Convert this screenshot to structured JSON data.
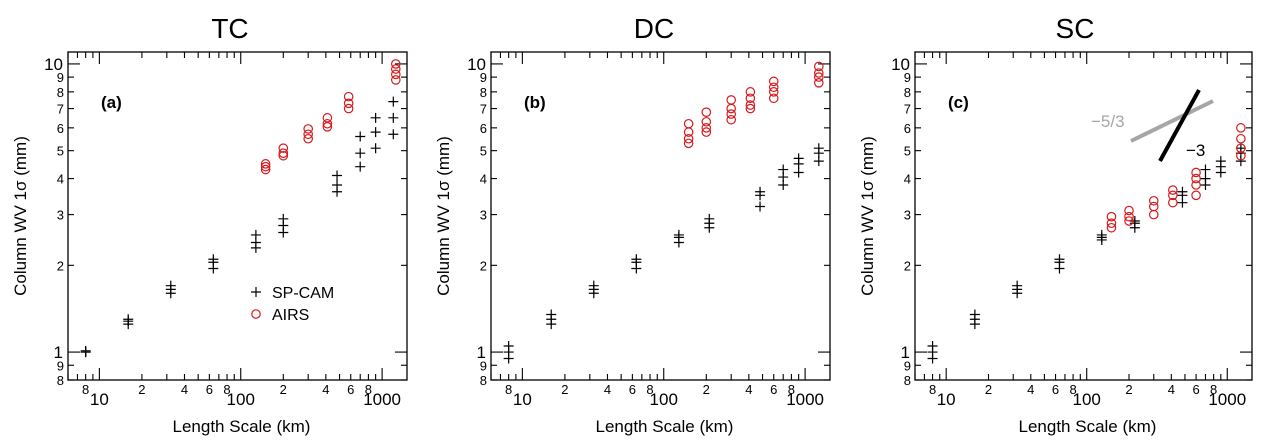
{
  "chart_data": [
    {
      "type": "scatter",
      "title": "TC",
      "panel_label": "(a)",
      "xlabel": "Length Scale (km)",
      "ylabel": "Column  WV  1σ   (mm)",
      "xscale": "log",
      "yscale": "log",
      "xlim": [
        6,
        1500
      ],
      "ylim": [
        0.8,
        11
      ],
      "x_ticklabels": [
        "10",
        "100",
        "1000"
      ],
      "y_ticklabels": [
        "1",
        "10"
      ],
      "legend": {
        "position": "lower-right",
        "entries": [
          "SP-CAM",
          "AIRS"
        ]
      },
      "series": [
        {
          "name": "SP-CAM",
          "marker": "plus",
          "color": "#000000",
          "points": [
            [
              8,
              1.0
            ],
            [
              8,
              1.01
            ],
            [
              8,
              1.0
            ],
            [
              16,
              1.25
            ],
            [
              16,
              1.3
            ],
            [
              16,
              1.28
            ],
            [
              32,
              1.6
            ],
            [
              32,
              1.65
            ],
            [
              32,
              1.7
            ],
            [
              64,
              1.95
            ],
            [
              64,
              2.05
            ],
            [
              64,
              2.1
            ],
            [
              128,
              2.3
            ],
            [
              128,
              2.4
            ],
            [
              128,
              2.55
            ],
            [
              200,
              2.6
            ],
            [
              200,
              2.75
            ],
            [
              200,
              2.9
            ],
            [
              480,
              3.6
            ],
            [
              480,
              3.8
            ],
            [
              480,
              4.1
            ],
            [
              700,
              4.4
            ],
            [
              700,
              4.9
            ],
            [
              700,
              5.6
            ],
            [
              900,
              5.1
            ],
            [
              900,
              5.8
            ],
            [
              900,
              6.5
            ],
            [
              1200,
              5.7
            ],
            [
              1200,
              6.5
            ],
            [
              1200,
              7.4
            ]
          ]
        },
        {
          "name": "AIRS",
          "marker": "circle",
          "color": "#d7191c",
          "points": [
            [
              150,
              4.3
            ],
            [
              150,
              4.4
            ],
            [
              150,
              4.5
            ],
            [
              200,
              4.8
            ],
            [
              200,
              4.9
            ],
            [
              200,
              5.1
            ],
            [
              300,
              5.5
            ],
            [
              300,
              5.7
            ],
            [
              300,
              5.95
            ],
            [
              410,
              6.05
            ],
            [
              410,
              6.2
            ],
            [
              410,
              6.5
            ],
            [
              580,
              7.0
            ],
            [
              580,
              7.3
            ],
            [
              580,
              7.7
            ],
            [
              1250,
              8.8
            ],
            [
              1250,
              9.2
            ],
            [
              1250,
              9.6
            ],
            [
              1250,
              10.0
            ]
          ]
        }
      ]
    },
    {
      "type": "scatter",
      "title": "DC",
      "panel_label": "(b)",
      "xlabel": "Length Scale (km)",
      "ylabel": "Column  WV  1σ   (mm)",
      "xscale": "log",
      "yscale": "log",
      "xlim": [
        6,
        1500
      ],
      "ylim": [
        0.8,
        11
      ],
      "x_ticklabels": [
        "10",
        "100",
        "1000"
      ],
      "y_ticklabels": [
        "1",
        "10"
      ],
      "series": [
        {
          "name": "SP-CAM",
          "marker": "plus",
          "color": "#000000",
          "points": [
            [
              8,
              0.95
            ],
            [
              8,
              1.0
            ],
            [
              8,
              1.05
            ],
            [
              16,
              1.25
            ],
            [
              16,
              1.3
            ],
            [
              16,
              1.35
            ],
            [
              32,
              1.6
            ],
            [
              32,
              1.65
            ],
            [
              32,
              1.7
            ],
            [
              64,
              1.95
            ],
            [
              64,
              2.05
            ],
            [
              64,
              2.1
            ],
            [
              128,
              2.4
            ],
            [
              128,
              2.5
            ],
            [
              128,
              2.55
            ],
            [
              210,
              2.7
            ],
            [
              210,
              2.8
            ],
            [
              210,
              2.9
            ],
            [
              480,
              3.2
            ],
            [
              480,
              3.5
            ],
            [
              480,
              3.6
            ],
            [
              700,
              3.8
            ],
            [
              700,
              4.05
            ],
            [
              700,
              4.3
            ],
            [
              900,
              4.2
            ],
            [
              900,
              4.5
            ],
            [
              900,
              4.7
            ],
            [
              1250,
              4.6
            ],
            [
              1250,
              4.9
            ],
            [
              1250,
              5.1
            ]
          ]
        },
        {
          "name": "AIRS",
          "marker": "circle",
          "color": "#d7191c",
          "points": [
            [
              150,
              5.3
            ],
            [
              150,
              5.5
            ],
            [
              150,
              5.8
            ],
            [
              150,
              6.2
            ],
            [
              200,
              5.8
            ],
            [
              200,
              6.0
            ],
            [
              200,
              6.3
            ],
            [
              200,
              6.8
            ],
            [
              300,
              6.4
            ],
            [
              300,
              6.7
            ],
            [
              300,
              7.0
            ],
            [
              300,
              7.5
            ],
            [
              410,
              7.0
            ],
            [
              410,
              7.2
            ],
            [
              410,
              7.6
            ],
            [
              410,
              8.0
            ],
            [
              600,
              7.6
            ],
            [
              600,
              8.0
            ],
            [
              600,
              8.3
            ],
            [
              600,
              8.7
            ],
            [
              1250,
              8.6
            ],
            [
              1250,
              9.0
            ],
            [
              1250,
              9.3
            ],
            [
              1250,
              9.8
            ]
          ]
        }
      ]
    },
    {
      "type": "scatter",
      "title": "SC",
      "panel_label": "(c)",
      "xlabel": "Length Scale (km)",
      "ylabel": "Column  WV  1σ   (mm)",
      "xscale": "log",
      "yscale": "log",
      "xlim": [
        6,
        1500
      ],
      "ylim": [
        0.8,
        11
      ],
      "x_ticklabels": [
        "10",
        "100",
        "1000"
      ],
      "y_ticklabels": [
        "1",
        "10"
      ],
      "annotations": [
        {
          "text": "−5/3",
          "color": "#a6a6a6"
        },
        {
          "text": "−3",
          "color": "#000000"
        }
      ],
      "series": [
        {
          "name": "SP-CAM",
          "marker": "plus",
          "color": "#000000",
          "points": [
            [
              8,
              0.95
            ],
            [
              8,
              1.0
            ],
            [
              8,
              1.05
            ],
            [
              16,
              1.25
            ],
            [
              16,
              1.3
            ],
            [
              16,
              1.35
            ],
            [
              32,
              1.6
            ],
            [
              32,
              1.65
            ],
            [
              32,
              1.7
            ],
            [
              64,
              1.95
            ],
            [
              64,
              2.05
            ],
            [
              64,
              2.1
            ],
            [
              128,
              2.45
            ],
            [
              128,
              2.5
            ],
            [
              128,
              2.55
            ],
            [
              220,
              2.7
            ],
            [
              220,
              2.8
            ],
            [
              220,
              2.85
            ],
            [
              480,
              3.3
            ],
            [
              480,
              3.5
            ],
            [
              480,
              3.6
            ],
            [
              700,
              3.8
            ],
            [
              700,
              4.0
            ],
            [
              700,
              4.3
            ],
            [
              900,
              4.2
            ],
            [
              900,
              4.4
            ],
            [
              900,
              4.6
            ],
            [
              1250,
              4.6
            ],
            [
              1250,
              4.9
            ],
            [
              1250,
              5.1
            ]
          ]
        },
        {
          "name": "AIRS",
          "marker": "circle",
          "color": "#d7191c",
          "points": [
            [
              150,
              2.7
            ],
            [
              150,
              2.8
            ],
            [
              150,
              2.95
            ],
            [
              200,
              2.85
            ],
            [
              200,
              2.95
            ],
            [
              200,
              3.1
            ],
            [
              300,
              3.0
            ],
            [
              300,
              3.2
            ],
            [
              300,
              3.35
            ],
            [
              410,
              3.3
            ],
            [
              410,
              3.5
            ],
            [
              410,
              3.65
            ],
            [
              600,
              3.5
            ],
            [
              600,
              3.8
            ],
            [
              600,
              4.0
            ],
            [
              600,
              4.2
            ],
            [
              1250,
              4.8
            ],
            [
              1250,
              5.1
            ],
            [
              1250,
              5.5
            ],
            [
              1250,
              6.0
            ]
          ]
        }
      ]
    }
  ]
}
